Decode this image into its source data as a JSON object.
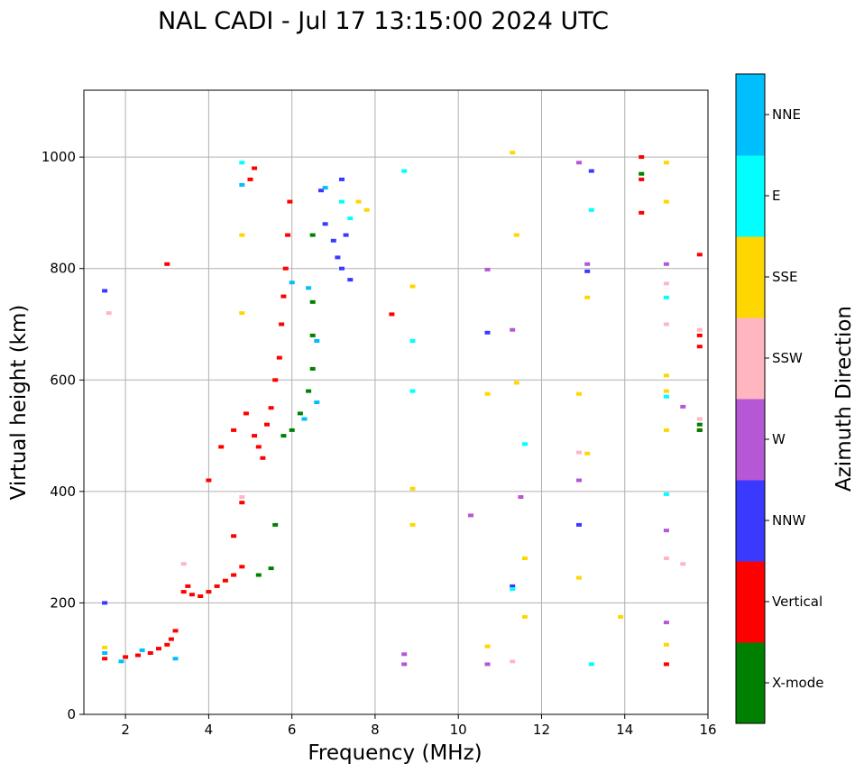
{
  "chart_data": {
    "type": "scatter",
    "title": "NAL CADI - Jul 17 13:15:00 2024 UTC",
    "xlabel": "Frequency (MHz)",
    "ylabel": "Virtual height (km)",
    "xlim": [
      1,
      16
    ],
    "ylim": [
      0,
      1120
    ],
    "xticks": [
      2,
      4,
      6,
      8,
      10,
      12,
      14,
      16
    ],
    "yticks": [
      0,
      200,
      400,
      600,
      800,
      1000
    ],
    "grid": true,
    "colorbar": {
      "label": "Azimuth Direction",
      "categories": [
        {
          "name": "X-mode",
          "color": "#008000"
        },
        {
          "name": "Vertical",
          "color": "#ff0000"
        },
        {
          "name": "NNW",
          "color": "#3a3aff"
        },
        {
          "name": "W",
          "color": "#b657d6"
        },
        {
          "name": "SSW",
          "color": "#ffb6c1"
        },
        {
          "name": "SSE",
          "color": "#ffd700"
        },
        {
          "name": "E",
          "color": "#00ffff"
        },
        {
          "name": "NNE",
          "color": "#00bfff"
        }
      ]
    },
    "series": [
      {
        "name": "Vertical",
        "points": [
          [
            1.5,
            100
          ],
          [
            2.0,
            103
          ],
          [
            2.3,
            106
          ],
          [
            2.6,
            110
          ],
          [
            2.8,
            118
          ],
          [
            3.0,
            125
          ],
          [
            3.1,
            135
          ],
          [
            3.2,
            150
          ],
          [
            3.4,
            220
          ],
          [
            3.5,
            230
          ],
          [
            3.6,
            215
          ],
          [
            3.8,
            212
          ],
          [
            4.0,
            220
          ],
          [
            4.2,
            230
          ],
          [
            4.4,
            240
          ],
          [
            4.6,
            250
          ],
          [
            4.8,
            265
          ],
          [
            4.6,
            320
          ],
          [
            4.8,
            380
          ],
          [
            4.0,
            420
          ],
          [
            4.3,
            480
          ],
          [
            4.6,
            510
          ],
          [
            4.9,
            540
          ],
          [
            5.1,
            500
          ],
          [
            5.2,
            480
          ],
          [
            5.3,
            460
          ],
          [
            5.4,
            520
          ],
          [
            5.5,
            550
          ],
          [
            5.6,
            600
          ],
          [
            5.7,
            640
          ],
          [
            5.75,
            700
          ],
          [
            5.8,
            750
          ],
          [
            5.85,
            800
          ],
          [
            5.9,
            860
          ],
          [
            5.95,
            920
          ],
          [
            5.0,
            960
          ],
          [
            5.1,
            980
          ],
          [
            3.0,
            808
          ],
          [
            8.4,
            718
          ],
          [
            14.4,
            1000
          ],
          [
            14.4,
            960
          ],
          [
            14.4,
            900
          ],
          [
            15.8,
            825
          ],
          [
            15.8,
            680
          ],
          [
            15.8,
            660
          ],
          [
            15.8,
            510
          ],
          [
            15.0,
            90
          ]
        ]
      },
      {
        "name": "X-mode",
        "points": [
          [
            5.2,
            250
          ],
          [
            5.5,
            262
          ],
          [
            5.6,
            340
          ],
          [
            5.8,
            500
          ],
          [
            6.0,
            510
          ],
          [
            6.2,
            540
          ],
          [
            6.4,
            580
          ],
          [
            6.5,
            620
          ],
          [
            6.5,
            680
          ],
          [
            6.5,
            740
          ],
          [
            6.5,
            860
          ],
          [
            14.4,
            970
          ],
          [
            15.8,
            520
          ],
          [
            15.8,
            510
          ]
        ]
      },
      {
        "name": "NNW",
        "points": [
          [
            1.5,
            760
          ],
          [
            1.5,
            200
          ],
          [
            6.7,
            940
          ],
          [
            6.8,
            880
          ],
          [
            7.0,
            850
          ],
          [
            7.1,
            820
          ],
          [
            7.2,
            800
          ],
          [
            7.3,
            860
          ],
          [
            7.2,
            960
          ],
          [
            7.4,
            780
          ],
          [
            11.3,
            230
          ],
          [
            12.9,
            340
          ],
          [
            13.2,
            975
          ],
          [
            10.7,
            685
          ],
          [
            13.1,
            795
          ]
        ]
      },
      {
        "name": "W",
        "points": [
          [
            8.7,
            90
          ],
          [
            8.7,
            108
          ],
          [
            10.7,
            90
          ],
          [
            10.3,
            357
          ],
          [
            11.5,
            390
          ],
          [
            12.9,
            420
          ],
          [
            12.9,
            990
          ],
          [
            13.1,
            808
          ],
          [
            15.0,
            808
          ],
          [
            15.0,
            330
          ],
          [
            15.4,
            552
          ],
          [
            11.3,
            690
          ],
          [
            10.7,
            798
          ],
          [
            15.0,
            165
          ]
        ]
      },
      {
        "name": "SSW",
        "points": [
          [
            1.6,
            720
          ],
          [
            3.4,
            270
          ],
          [
            4.8,
            390
          ],
          [
            11.3,
            95
          ],
          [
            12.9,
            470
          ],
          [
            15.0,
            700
          ],
          [
            15.0,
            280
          ],
          [
            15.0,
            773
          ],
          [
            15.4,
            270
          ],
          [
            15.8,
            690
          ],
          [
            15.8,
            530
          ]
        ]
      },
      {
        "name": "SSE",
        "points": [
          [
            1.5,
            120
          ],
          [
            4.8,
            860
          ],
          [
            4.8,
            720
          ],
          [
            7.6,
            920
          ],
          [
            7.8,
            905
          ],
          [
            8.9,
            768
          ],
          [
            8.9,
            405
          ],
          [
            8.9,
            340
          ],
          [
            10.7,
            575
          ],
          [
            10.7,
            122
          ],
          [
            11.3,
            1008
          ],
          [
            11.4,
            860
          ],
          [
            11.4,
            595
          ],
          [
            11.6,
            280
          ],
          [
            11.6,
            175
          ],
          [
            12.9,
            575
          ],
          [
            12.9,
            245
          ],
          [
            13.1,
            468
          ],
          [
            13.1,
            748
          ],
          [
            13.9,
            175
          ],
          [
            15.0,
            990
          ],
          [
            15.0,
            920
          ],
          [
            15.0,
            608
          ],
          [
            15.0,
            580
          ],
          [
            15.0,
            510
          ],
          [
            15.0,
            125
          ]
        ]
      },
      {
        "name": "E",
        "points": [
          [
            4.8,
            990
          ],
          [
            7.2,
            920
          ],
          [
            7.4,
            890
          ],
          [
            8.7,
            975
          ],
          [
            8.9,
            670
          ],
          [
            8.9,
            580
          ],
          [
            11.6,
            485
          ],
          [
            11.3,
            225
          ],
          [
            13.2,
            905
          ],
          [
            13.2,
            90
          ],
          [
            15.0,
            748
          ],
          [
            15.0,
            570
          ],
          [
            15.0,
            395
          ]
        ]
      },
      {
        "name": "NNE",
        "points": [
          [
            1.5,
            110
          ],
          [
            1.9,
            95
          ],
          [
            2.4,
            115
          ],
          [
            3.2,
            100
          ],
          [
            4.8,
            950
          ],
          [
            6.0,
            775
          ],
          [
            6.4,
            765
          ],
          [
            6.6,
            670
          ],
          [
            6.6,
            560
          ],
          [
            6.3,
            530
          ],
          [
            6.8,
            945
          ]
        ]
      }
    ]
  }
}
